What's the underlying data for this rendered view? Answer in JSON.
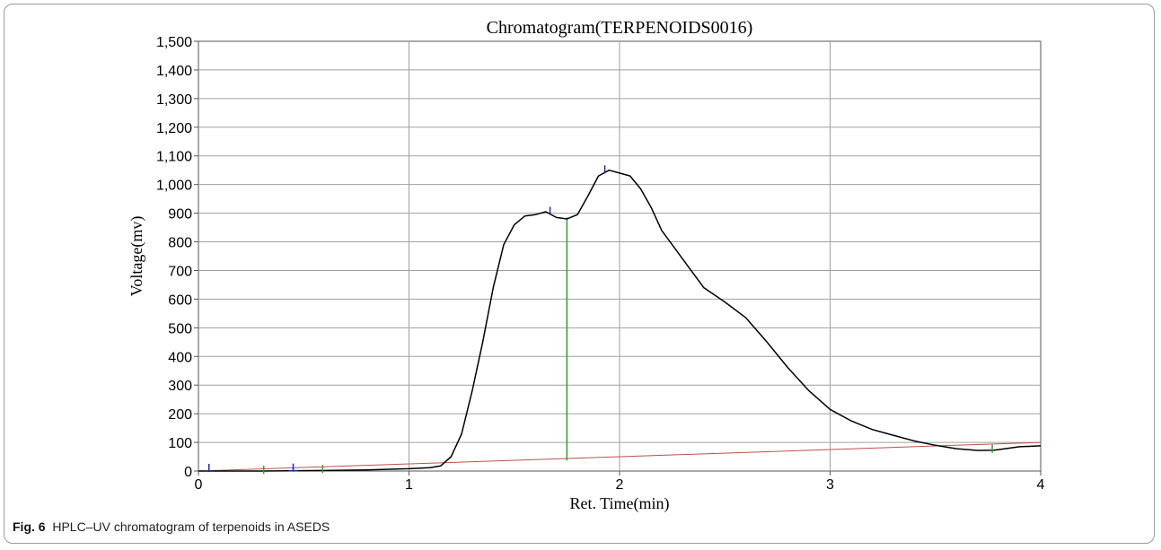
{
  "figure": {
    "label": "Fig. 6",
    "caption": "HPLC–UV chromatogram of terpenoids in ASEDS"
  },
  "chart_data": {
    "type": "line",
    "title": "Chromatogram(TERPENOIDS0016)",
    "xlabel": "Ret. Time(min)",
    "ylabel": "Voltage(mv)",
    "xlim": [
      0,
      4
    ],
    "ylim": [
      0,
      1500
    ],
    "x_ticks": [
      0,
      1,
      2,
      3,
      4
    ],
    "x_tick_labels": [
      "0",
      "1",
      "2",
      "3",
      "4"
    ],
    "y_ticks": [
      0,
      100,
      200,
      300,
      400,
      500,
      600,
      700,
      800,
      900,
      1000,
      1100,
      1200,
      1300,
      1400,
      1500
    ],
    "y_tick_labels": [
      "0",
      "100",
      "200",
      "300",
      "400",
      "500",
      "600",
      "700",
      "800",
      "900",
      "1,000",
      "1,100",
      "1,200",
      "1,300",
      "1,400",
      "1,500"
    ],
    "grid": true,
    "series": [
      {
        "color": "#000000",
        "x": [
          0,
          0.3,
          0.6,
          0.8,
          1.0,
          1.1,
          1.15,
          1.2,
          1.25,
          1.3,
          1.35,
          1.4,
          1.45,
          1.5,
          1.55,
          1.6,
          1.65,
          1.7,
          1.75,
          1.8,
          1.85,
          1.9,
          1.95,
          2.0,
          2.05,
          2.1,
          2.15,
          2.2,
          2.3,
          2.4,
          2.5,
          2.6,
          2.7,
          2.8,
          2.9,
          3.0,
          3.1,
          3.2,
          3.3,
          3.4,
          3.5,
          3.6,
          3.7,
          3.78,
          3.85,
          3.9,
          4.0
        ],
        "y": [
          0,
          0,
          2,
          4,
          8,
          12,
          18,
          50,
          130,
          280,
          450,
          640,
          790,
          860,
          890,
          895,
          905,
          885,
          880,
          895,
          960,
          1030,
          1050,
          1040,
          1030,
          985,
          920,
          840,
          740,
          640,
          590,
          535,
          450,
          360,
          280,
          215,
          175,
          145,
          125,
          105,
          90,
          78,
          72,
          73,
          80,
          85,
          88
        ]
      }
    ],
    "baseline": {
      "color": "#c0504d",
      "x": [
        0,
        4
      ],
      "y": [
        0,
        100
      ]
    },
    "peak_markers": {
      "color": "#1f2a9c",
      "x": [
        0.05,
        0.45,
        1.67,
        1.93
      ]
    },
    "event_ticks": {
      "color": "#2ca02c",
      "x": [
        0.31,
        0.59,
        3.77
      ]
    },
    "drop_lines": [
      {
        "color": "#2ca02c",
        "x": 1.75,
        "y_bottom": 37,
        "y_top": 885
      }
    ]
  }
}
